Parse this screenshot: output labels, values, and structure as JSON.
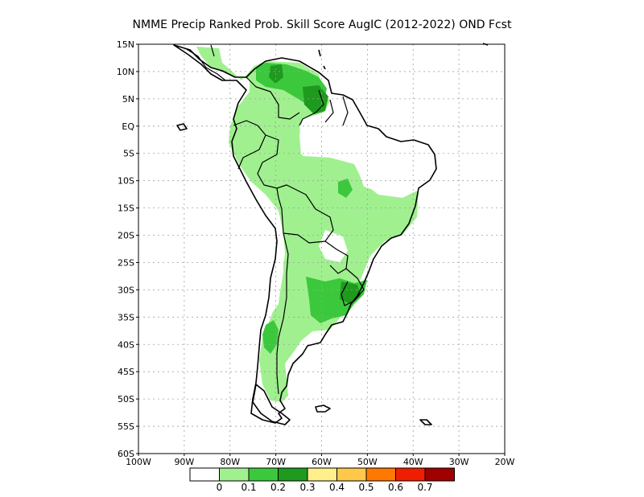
{
  "title": "NMME Precip Ranked Prob. Skill Score AugIC (2012-2022) OND Fcst",
  "map": {
    "lon_range": [
      -100,
      -20
    ],
    "lat_range": [
      -60,
      15
    ],
    "grid": true,
    "lon_ticks": [
      {
        "value": -100,
        "label": "100W"
      },
      {
        "value": -90,
        "label": "90W"
      },
      {
        "value": -80,
        "label": "80W"
      },
      {
        "value": -70,
        "label": "70W"
      },
      {
        "value": -60,
        "label": "60W"
      },
      {
        "value": -50,
        "label": "50W"
      },
      {
        "value": -40,
        "label": "40W"
      },
      {
        "value": -30,
        "label": "30W"
      },
      {
        "value": -20,
        "label": "20W"
      }
    ],
    "lat_ticks": [
      {
        "value": 15,
        "label": "15N"
      },
      {
        "value": 10,
        "label": "10N"
      },
      {
        "value": 5,
        "label": "5N"
      },
      {
        "value": 0,
        "label": "EQ"
      },
      {
        "value": -5,
        "label": "5S"
      },
      {
        "value": -10,
        "label": "10S"
      },
      {
        "value": -15,
        "label": "15S"
      },
      {
        "value": -20,
        "label": "20S"
      },
      {
        "value": -25,
        "label": "25S"
      },
      {
        "value": -30,
        "label": "30S"
      },
      {
        "value": -35,
        "label": "35S"
      },
      {
        "value": -40,
        "label": "40S"
      },
      {
        "value": -45,
        "label": "45S"
      },
      {
        "value": -50,
        "label": "50S"
      },
      {
        "value": -55,
        "label": "55S"
      },
      {
        "value": -60,
        "label": "60S"
      }
    ]
  },
  "colorbar": {
    "colors": [
      "#ffffff",
      "#a0f090",
      "#3cc83c",
      "#1e9a1e",
      "#fff08c",
      "#ffc84a",
      "#ff7800",
      "#f01e00",
      "#a00000"
    ],
    "labels": [
      "0",
      "0.1",
      "0.2",
      "0.3",
      "0.4",
      "0.5",
      "0.6",
      "0.7"
    ]
  },
  "skill_colors": {
    "light_green": "#a0f090",
    "mid_green": "#3cc83c",
    "dark_green": "#1e9a1e"
  }
}
